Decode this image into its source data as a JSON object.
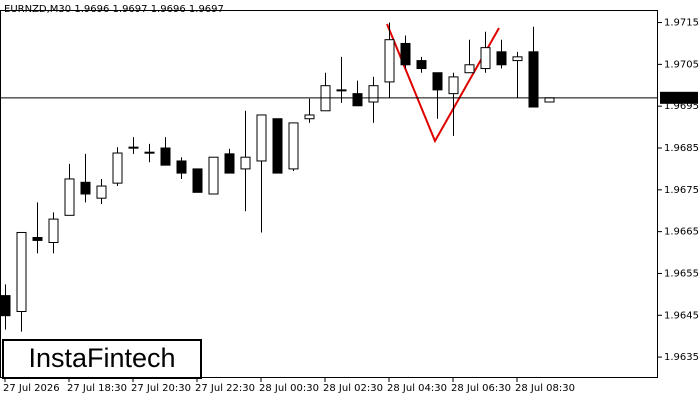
{
  "chart_data": {
    "type": "candlestick",
    "symbol": "EURNZD,M30",
    "header_values": [
      1.9696,
      1.9697,
      1.9696,
      1.9697
    ],
    "logo": "InstaFintech",
    "current_price": 1.9697,
    "categories": [
      "27 Jul 2026",
      null,
      null,
      null,
      "27 Jul 18:30",
      null,
      null,
      null,
      "27 Jul 20:30",
      null,
      null,
      null,
      "27 Jul 22:30",
      null,
      null,
      null,
      "28 Jul 00:30",
      null,
      null,
      null,
      "28 Jul 02:30",
      null,
      null,
      null,
      "28 Jul 04:30",
      null,
      null,
      null,
      "28 Jul 06:30",
      null,
      null,
      null,
      "28 Jul 08:30",
      null,
      null
    ],
    "open": [
      1.96497,
      1.96459,
      1.96636,
      1.96624,
      1.96689,
      1.96768,
      1.9673,
      1.96766,
      1.9685,
      1.9684,
      1.9685,
      1.96819,
      1.968,
      1.9674,
      1.96836,
      1.968,
      1.96819,
      1.9692,
      1.968,
      1.9692,
      1.96939,
      1.96989,
      1.9698,
      1.9696,
      1.97008,
      1.971,
      1.97059,
      1.9703,
      1.9698,
      1.9703,
      1.9704,
      1.9708,
      1.97059,
      1.9708,
      1.9696
    ],
    "high": [
      1.96524,
      1.96648,
      1.9672,
      1.96696,
      1.96812,
      1.96836,
      1.96776,
      1.96852,
      1.96876,
      1.9686,
      1.96876,
      1.96828,
      1.968,
      1.96828,
      1.96848,
      1.96939,
      1.96929,
      1.9692,
      1.9691,
      1.96968,
      1.9703,
      1.97068,
      1.97011,
      1.9702,
      1.9715,
      1.97119,
      1.97068,
      1.9703,
      1.9703,
      1.97109,
      1.97128,
      1.97109,
      1.9708,
      1.9714,
      1.9697
    ],
    "low": [
      1.96416,
      1.96411,
      1.96598,
      1.96598,
      1.96689,
      1.9672,
      1.96716,
      1.96759,
      1.96836,
      1.96816,
      1.96809,
      1.96776,
      1.96744,
      1.9674,
      1.9679,
      1.96699,
      1.96648,
      1.9679,
      1.96795,
      1.9691,
      1.96939,
      1.96958,
      1.96951,
      1.9691,
      1.9697,
      1.9704,
      1.9703,
      1.9692,
      1.96879,
      1.9703,
      1.9703,
      1.9704,
      1.9697,
      1.96948,
      1.9696
    ],
    "close": [
      1.96449,
      1.96648,
      1.96629,
      1.9668,
      1.96776,
      1.9674,
      1.96759,
      1.96838,
      1.96852,
      1.96838,
      1.96809,
      1.9679,
      1.96744,
      1.96828,
      1.9679,
      1.96828,
      1.96929,
      1.9679,
      1.9691,
      1.96929,
      1.96999,
      1.96989,
      1.96951,
      1.96999,
      1.97109,
      1.97049,
      1.9704,
      1.96989,
      1.9702,
      1.97049,
      1.9709,
      1.97049,
      1.97068,
      1.96948,
      1.9697
    ],
    "up_color": "#ffffff",
    "down_color": "#000000",
    "ylim": [
      1.963,
      1.9718
    ],
    "yticks": [
      1.9635,
      1.9645,
      1.9655,
      1.9665,
      1.9675,
      1.9685,
      1.9695,
      1.9705,
      1.9715
    ]
  }
}
